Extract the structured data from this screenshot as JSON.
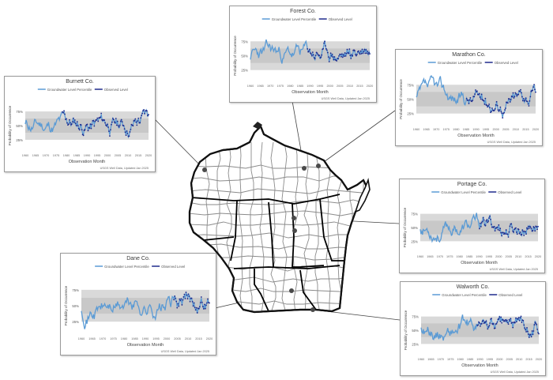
{
  "map": {
    "region": "Wisconsin",
    "colors": {
      "outline": "#111111",
      "county_line": "#8a8a8a",
      "district_line": "#000000",
      "marker": "#4a4a4a"
    }
  },
  "chart_colors": {
    "band": "#d9d9d9",
    "band_inner": "#c8c8c8",
    "series_a": "#5b9bd5",
    "series_b": "#1f2a8c"
  },
  "chart_data": [
    {
      "id": "burnett",
      "type": "line",
      "title": "Burnett Co.",
      "xlabel": "Observation Month",
      "ylabel": "Probability of Occurrence",
      "legend": [
        "Groundwater Level Percentile",
        "Observed Level"
      ],
      "yticks": [
        "75%",
        "50%",
        "25%"
      ],
      "xticks": [
        "1960",
        "1965",
        "1970",
        "1975",
        "1980",
        "1985",
        "1990",
        "1995",
        "2000",
        "2005",
        "2010",
        "2015",
        "2020"
      ],
      "footnote": "USGS Well Data, Updated Jan 2025"
    },
    {
      "id": "forest",
      "type": "line",
      "title": "Forest Co.",
      "xlabel": "Observation Month",
      "ylabel": "Probability of Occurrence",
      "legend": [
        "Groundwater Level Percentile",
        "Observed Level"
      ],
      "yticks": [
        "75%",
        "50%",
        "25%"
      ],
      "xticks": [
        "1960",
        "1965",
        "1970",
        "1975",
        "1980",
        "1985",
        "1990",
        "1995",
        "2000",
        "2005",
        "2010",
        "2015",
        "2020"
      ],
      "footnote": "USGS Well Data, Updated Jan 2025"
    },
    {
      "id": "marathon",
      "type": "line",
      "title": "Marathon Co.",
      "xlabel": "Observation Month",
      "ylabel": "Probability of Occurrence",
      "legend": [
        "Groundwater Level Percentile",
        "Observed Level"
      ],
      "yticks": [
        "75%",
        "50%",
        "25%"
      ],
      "xticks": [
        "1960",
        "1965",
        "1970",
        "1975",
        "1980",
        "1985",
        "1990",
        "1995",
        "2000",
        "2005",
        "2010",
        "2015",
        "2020"
      ],
      "footnote": "USGS Well Data, Updated Jan 2025"
    },
    {
      "id": "portage",
      "type": "line",
      "title": "Portage Co.",
      "xlabel": "Observation Month",
      "ylabel": "Probability of Occurrence",
      "legend": [
        "Groundwater Level Percentile",
        "Observed Level"
      ],
      "yticks": [
        "75%",
        "50%",
        "25%"
      ],
      "xticks": [
        "1960",
        "1965",
        "1970",
        "1975",
        "1980",
        "1985",
        "1990",
        "1995",
        "2000",
        "2005",
        "2010",
        "2015",
        "2020"
      ],
      "footnote": "USGS Well Data, Updated Jan 2025"
    },
    {
      "id": "dane",
      "type": "line",
      "title": "Dane Co.",
      "xlabel": "Observation Month",
      "ylabel": "Probability of Occurrence",
      "legend": [
        "Groundwater Level Percentile",
        "Observed Level"
      ],
      "yticks": [
        "75%",
        "50%",
        "25%"
      ],
      "xticks": [
        "1960",
        "1965",
        "1970",
        "1975",
        "1980",
        "1985",
        "1990",
        "1995",
        "2000",
        "2005",
        "2010",
        "2015",
        "2020"
      ],
      "footnote": "USGS Well Data, Updated Jan 2025"
    },
    {
      "id": "walworth",
      "type": "line",
      "title": "Walworth Co.",
      "xlabel": "Observation Month",
      "ylabel": "Probability of Occurrence",
      "legend": [
        "Groundwater Level Percentile",
        "Observed Level"
      ],
      "yticks": [
        "75%",
        "50%",
        "25%"
      ],
      "xticks": [
        "1960",
        "1965",
        "1970",
        "1975",
        "1980",
        "1985",
        "1990",
        "1995",
        "2000",
        "2005",
        "2010",
        "2015",
        "2020"
      ],
      "footnote": "USGS Well Data, Updated Jan 2025"
    }
  ]
}
